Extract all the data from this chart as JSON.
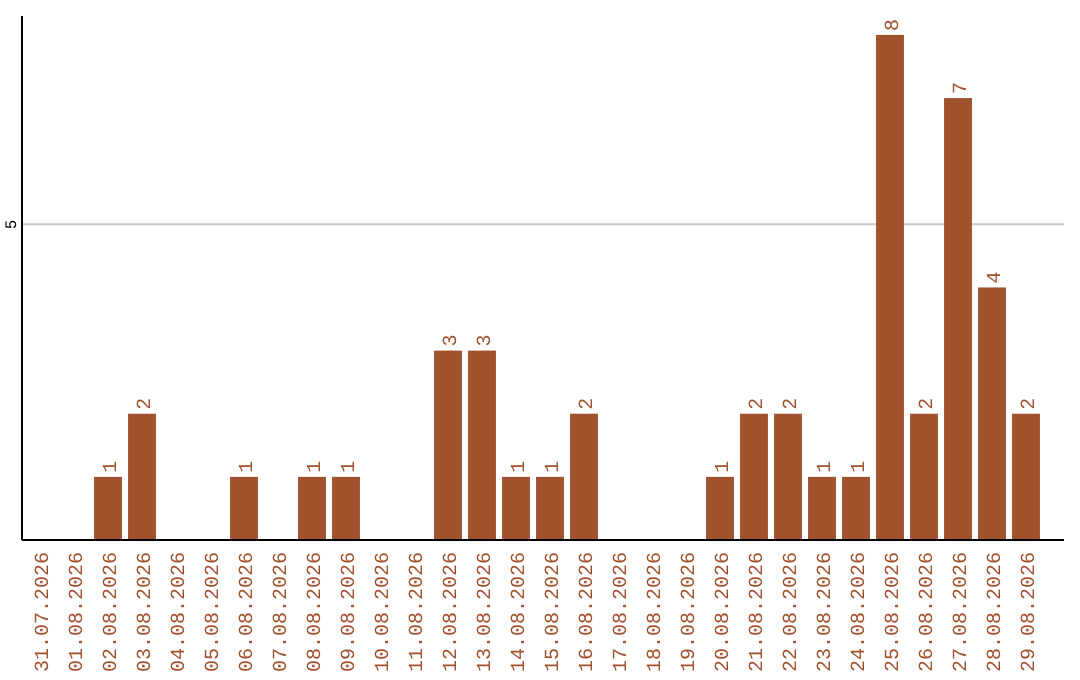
{
  "chart_data": {
    "type": "bar",
    "categories": [
      "31.07.2026",
      "01.08.2026",
      "02.08.2026",
      "03.08.2026",
      "04.08.2026",
      "05.08.2026",
      "06.08.2026",
      "07.08.2026",
      "08.08.2026",
      "09.08.2026",
      "10.08.2026",
      "11.08.2026",
      "12.08.2026",
      "13.08.2026",
      "14.08.2026",
      "15.08.2026",
      "16.08.2026",
      "17.08.2026",
      "18.08.2026",
      "19.08.2026",
      "20.08.2026",
      "21.08.2026",
      "22.08.2026",
      "23.08.2026",
      "24.08.2026",
      "25.08.2026",
      "26.08.2026",
      "27.08.2026",
      "28.08.2026",
      "29.08.2026"
    ],
    "values": [
      0,
      0,
      1,
      2,
      0,
      0,
      1,
      0,
      1,
      1,
      0,
      0,
      3,
      3,
      1,
      1,
      2,
      0,
      0,
      0,
      1,
      2,
      2,
      1,
      1,
      8,
      2,
      7,
      4,
      2
    ],
    "value_labels": [
      null,
      null,
      "1",
      "2",
      null,
      null,
      "1",
      null,
      "1",
      "1",
      null,
      null,
      "3",
      "3",
      "1",
      "1",
      "2",
      null,
      null,
      null,
      "1",
      "2",
      "2",
      "1",
      "1",
      "8",
      "2",
      "7",
      "4",
      "2"
    ],
    "color": "#a0522d",
    "ylim": [
      0,
      8.3
    ],
    "yticks": [
      5
    ],
    "grid": "y"
  }
}
